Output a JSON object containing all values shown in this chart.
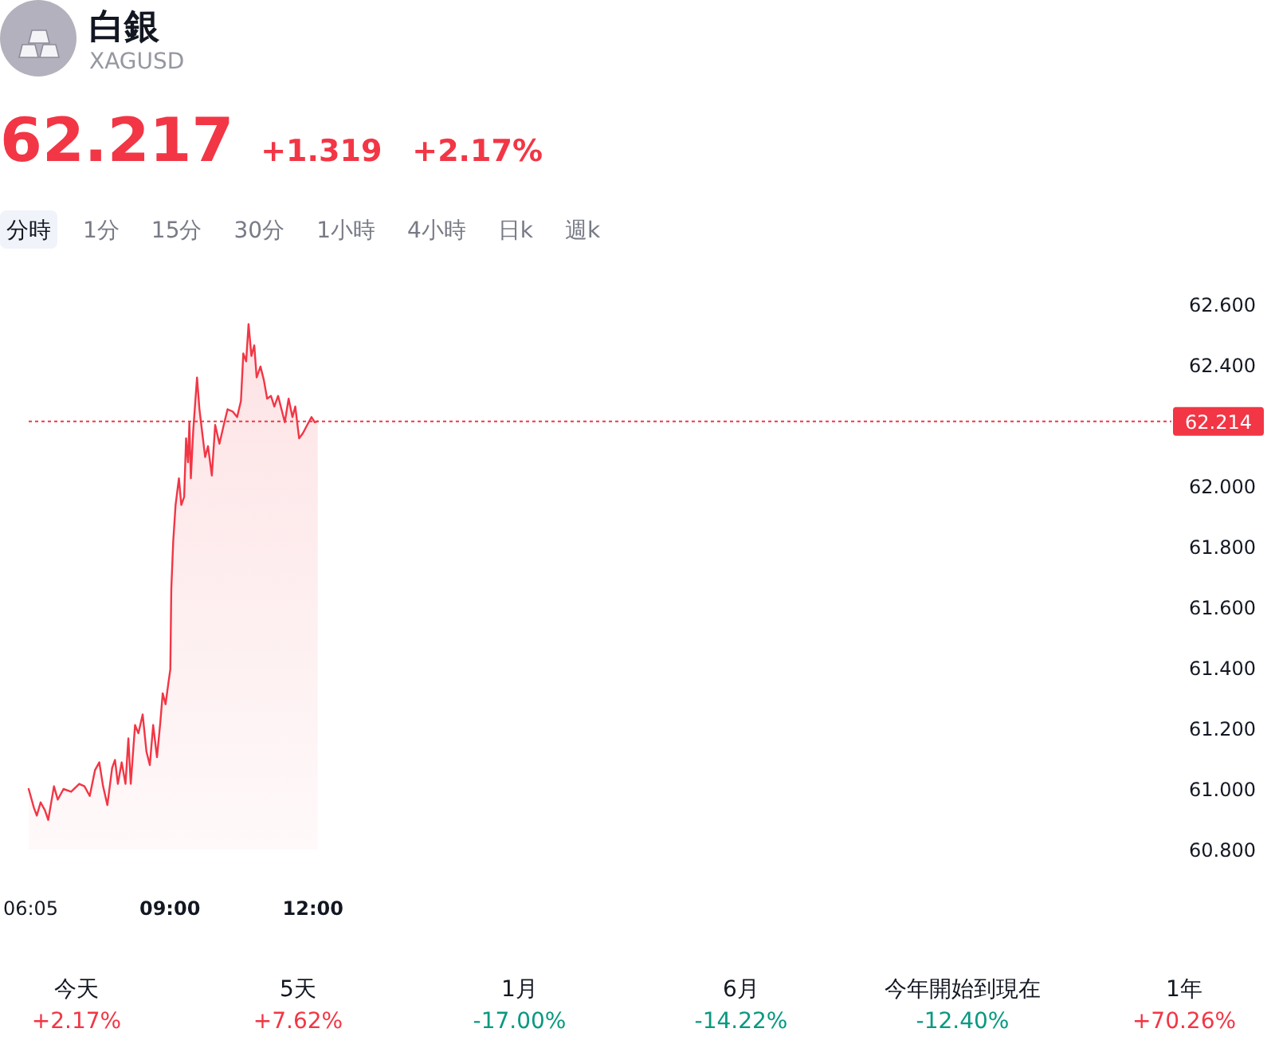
{
  "chart_data": [
    {
      "type": "other",
      "title": "白銀",
      "subtitle": "XAGUSD",
      "annotations": [
        "62.217",
        "+1.319",
        "+2.17%"
      ],
      "color": "#f23645"
    },
    {
      "type": "other",
      "categories": [
        "分時",
        "1分",
        "15分",
        "30分",
        "1小時",
        "4小時",
        "日k",
        "週k"
      ]
    },
    {
      "type": "area",
      "color": "#f23645",
      "x": [
        6.04,
        6.15,
        6.21,
        6.29,
        6.38,
        6.45,
        6.57,
        6.65,
        6.77,
        6.93,
        7.1,
        7.21,
        7.32,
        7.43,
        7.52,
        7.6,
        7.69,
        7.79,
        7.85,
        7.91,
        7.99,
        8.07,
        8.13,
        8.18,
        8.27,
        8.34,
        8.43,
        8.51,
        8.58,
        8.65,
        8.73,
        8.8,
        8.85,
        8.91,
        8.97,
        9.01,
        9.03,
        9.07,
        9.12,
        9.19,
        9.24,
        9.3,
        9.34,
        9.38,
        9.41,
        9.44,
        9.49,
        9.57,
        9.62,
        9.68,
        9.74,
        9.8,
        9.88,
        9.95,
        10.04,
        10.13,
        10.21,
        10.32,
        10.41,
        10.49,
        10.54,
        10.6,
        10.65,
        10.71,
        10.77,
        10.82,
        10.9,
        10.97,
        11.04,
        11.12,
        11.19,
        11.27,
        11.34,
        11.41,
        11.49,
        11.57,
        11.63,
        11.71,
        11.79,
        11.88,
        11.97,
        12.04,
        12.1
      ],
      "values": [
        61.0,
        60.938,
        60.912,
        60.956,
        60.93,
        60.898,
        61.009,
        60.965,
        61.0,
        60.991,
        61.017,
        61.009,
        60.977,
        61.062,
        61.088,
        61.009,
        60.947,
        61.07,
        61.096,
        61.017,
        61.088,
        61.017,
        61.167,
        61.017,
        61.211,
        61.184,
        61.246,
        61.123,
        61.079,
        61.211,
        61.105,
        61.22,
        61.316,
        61.28,
        61.351,
        61.395,
        61.66,
        61.816,
        61.938,
        62.026,
        61.938,
        61.965,
        62.158,
        62.079,
        62.211,
        62.026,
        62.184,
        62.359,
        62.254,
        62.175,
        62.096,
        62.132,
        62.035,
        62.202,
        62.14,
        62.202,
        62.254,
        62.246,
        62.228,
        62.281,
        62.438,
        62.412,
        62.535,
        62.43,
        62.465,
        62.359,
        62.395,
        62.351,
        62.289,
        62.298,
        62.263,
        62.298,
        62.254,
        62.211,
        62.289,
        62.228,
        62.263,
        62.158,
        62.175,
        62.202,
        62.228,
        62.211,
        62.214
      ],
      "xlim": [
        6.04,
        30.0
      ],
      "xticks": [
        {
          "value": 6.083,
          "label": "06:05"
        },
        {
          "value": 9,
          "label": "09:00"
        },
        {
          "value": 12,
          "label": "12:00"
        }
      ],
      "ylim": [
        60.8,
        62.6
      ],
      "yticks": [
        {
          "value": 62.6,
          "label": "62.600"
        },
        {
          "value": 62.4,
          "label": "62.400"
        },
        {
          "value": 62.0,
          "label": "62.000"
        },
        {
          "value": 61.8,
          "label": "61.800"
        },
        {
          "value": 61.6,
          "label": "61.600"
        },
        {
          "value": 61.4,
          "label": "61.400"
        },
        {
          "value": 61.2,
          "label": "61.200"
        },
        {
          "value": 61.0,
          "label": "61.000"
        },
        {
          "value": 60.8,
          "label": "60.800"
        }
      ],
      "ref_lines": [
        {
          "axis": "y",
          "value": 62.214,
          "label": "62.214",
          "color": "#f23645",
          "line_style": "dotted"
        }
      ]
    },
    {
      "type": "other",
      "categories": [
        "今天",
        "5天",
        "1月",
        "6月",
        "今年開始到現在",
        "1年"
      ],
      "value_labels": [
        "+2.17%",
        "+7.62%",
        "-17.00%",
        "-14.22%",
        "-12.40%",
        "+70.26%"
      ],
      "colors": [
        "#f23645",
        "#f23645",
        "#089981",
        "#089981",
        "#089981",
        "#f23645"
      ]
    }
  ]
}
